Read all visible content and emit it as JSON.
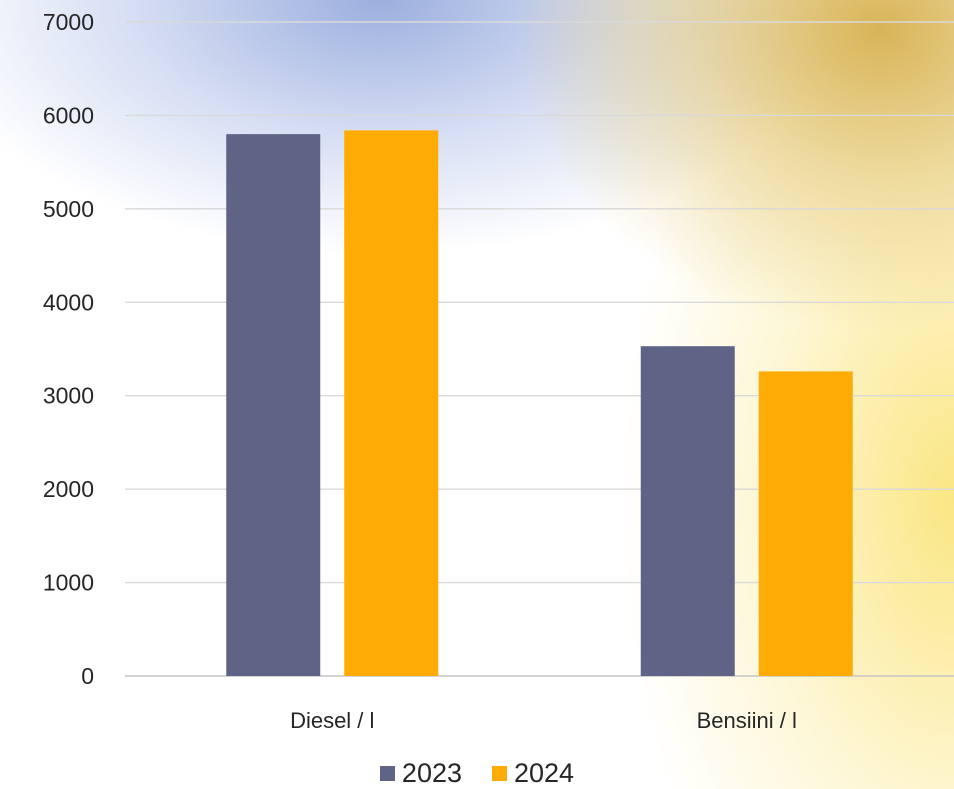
{
  "chart_data": {
    "type": "bar",
    "categories": [
      "Diesel / l",
      "Bensiini / l"
    ],
    "series": [
      {
        "name": "2023",
        "values": [
          5800,
          3530
        ],
        "color": "#5f6385"
      },
      {
        "name": "2024",
        "values": [
          5840,
          3260
        ],
        "color": "#ffab05"
      }
    ],
    "ylim": [
      0,
      7000
    ],
    "yticks": [
      0,
      1000,
      2000,
      3000,
      4000,
      5000,
      6000,
      7000
    ],
    "grid": true,
    "legend_position": "bottom"
  }
}
